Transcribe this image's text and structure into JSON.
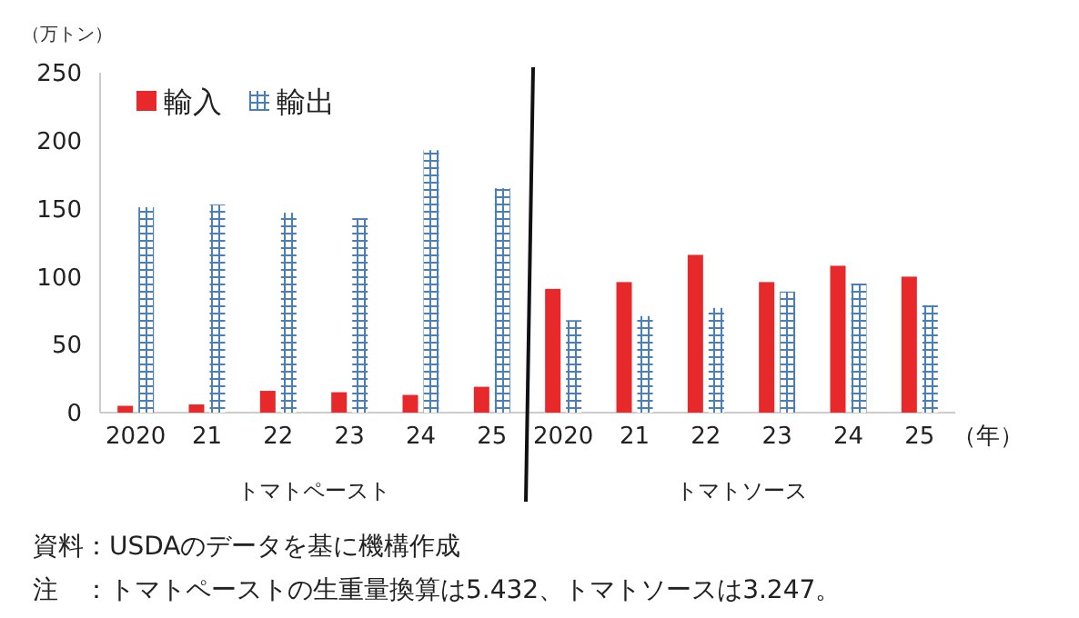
{
  "chart_data": {
    "type": "bar",
    "ylabel": "（万トン）",
    "xlabel": "（年）",
    "categories": [
      "2020",
      "21",
      "22",
      "23",
      "24",
      "25",
      "2020",
      "21",
      "22",
      "23",
      "24",
      "25"
    ],
    "series": [
      {
        "name": "輸入",
        "color": "#e8292b",
        "values": [
          5,
          6,
          16,
          15,
          13,
          19,
          91,
          96,
          116,
          96,
          108,
          100
        ]
      },
      {
        "name": "輸出",
        "color": "#4a7fb5",
        "values": [
          151,
          153,
          147,
          143,
          193,
          165,
          68,
          71,
          77,
          89,
          95,
          79
        ]
      }
    ],
    "ylim": [
      0,
      250
    ],
    "yticks": [
      0,
      50,
      100,
      150,
      200,
      250
    ],
    "grid": false,
    "legend": "top left",
    "annotations": [
      "トマトペースト",
      "トマトソース",
      "資料：USDAのデータを基に機構作成",
      "注　：トマトペーストの生重量換算は5.432、トマトソースは3.247。"
    ]
  }
}
